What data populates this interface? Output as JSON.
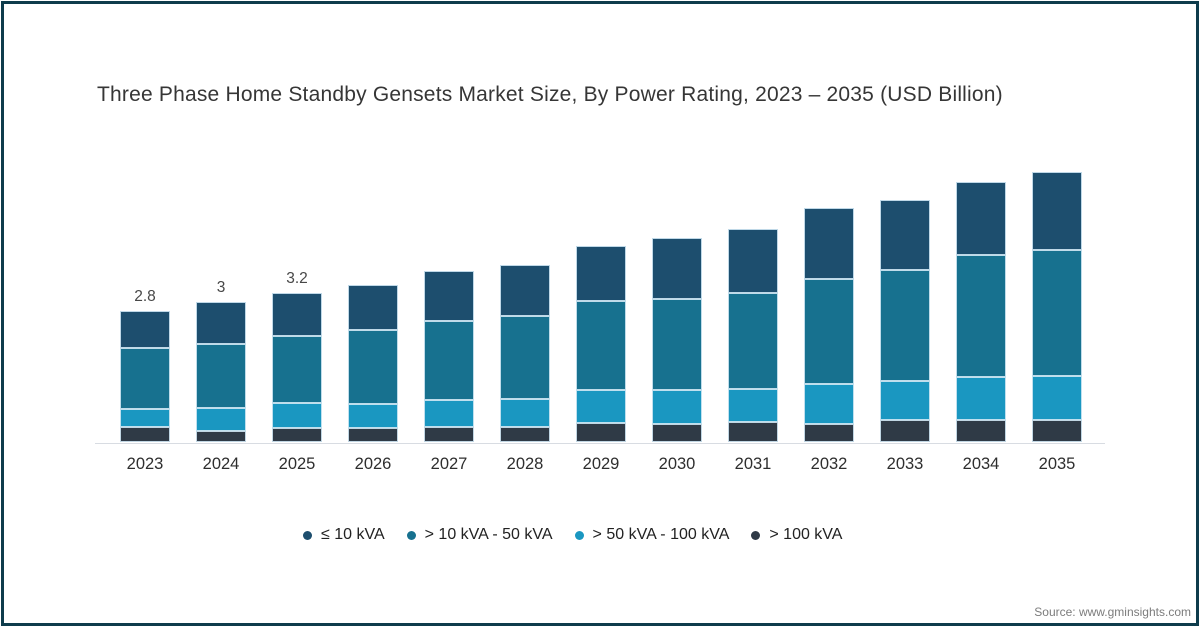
{
  "title": "Three Phase Home Standby Gensets Market Size, By Power Rating, 2023 – 2035 (USD Billion)",
  "source": "Source: www.gminsights.com",
  "colors": {
    "frame": "#0e3c4c",
    "axis_line": "#d8dce2",
    "title_text": "#363636",
    "legend_text": "#222222",
    "source_text": "#7c7c7c"
  },
  "chart_data": {
    "type": "bar",
    "stacked": true,
    "title": "Three Phase Home Standby Gensets Market Size, By Power Rating, 2023 – 2035 (USD Billion)",
    "xlabel": "",
    "ylabel": "USD Billion",
    "ylim": [
      0,
      6
    ],
    "grid": false,
    "legend_position": "bottom",
    "categories": [
      "2023",
      "2024",
      "2025",
      "2026",
      "2027",
      "2028",
      "2029",
      "2030",
      "2031",
      "2032",
      "2033",
      "2034",
      "2035"
    ],
    "series": [
      {
        "name": "≤ 10 kVA",
        "color": "#1d4e6e",
        "values": [
          0.79,
          0.89,
          0.91,
          0.96,
          1.07,
          1.09,
          1.18,
          1.3,
          1.37,
          1.5,
          1.5,
          1.57,
          1.68
        ]
      },
      {
        "name": "> 10 kVA - 50 kVA",
        "color": "#17718f",
        "values": [
          1.3,
          1.38,
          1.44,
          1.58,
          1.69,
          1.77,
          1.9,
          1.94,
          2.05,
          2.26,
          2.37,
          2.6,
          2.69
        ]
      },
      {
        "name": "> 50 kVA - 100 kVA",
        "color": "#1a97c1",
        "values": [
          0.38,
          0.49,
          0.53,
          0.53,
          0.58,
          0.6,
          0.7,
          0.73,
          0.71,
          0.84,
          0.83,
          0.91,
          0.94
        ]
      },
      {
        "name": "> 100 kVA",
        "color": "#2f3a46",
        "values": [
          0.32,
          0.23,
          0.3,
          0.29,
          0.32,
          0.32,
          0.41,
          0.39,
          0.42,
          0.39,
          0.48,
          0.48,
          0.47
        ]
      }
    ],
    "totals": [
      2.79,
      2.99,
      3.18,
      3.36,
      3.66,
      3.78,
      4.19,
      4.36,
      4.55,
      4.99,
      5.18,
      5.56,
      5.78
    ],
    "bar_value_labels": [
      "2.8",
      "3",
      "3.2",
      "",
      "",
      "",
      "",
      "",
      "",
      "",
      "",
      "",
      ""
    ]
  }
}
